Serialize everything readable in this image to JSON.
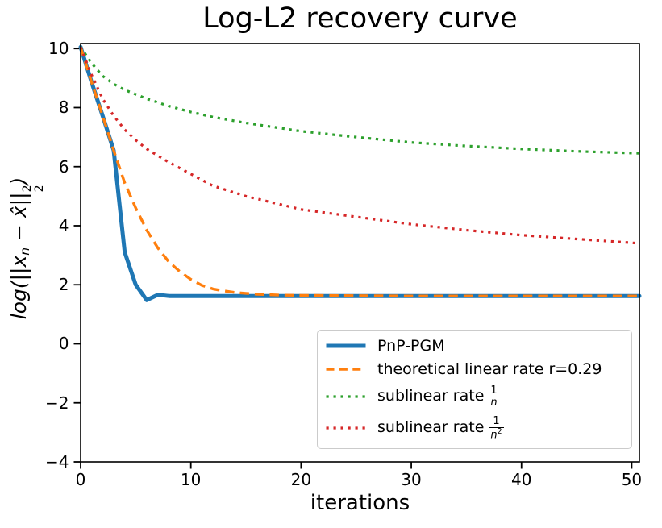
{
  "title": "Log-L2 recovery curve",
  "chart_data": {
    "type": "line",
    "title": "Log-L2 recovery curve",
    "xlabel": "iterations",
    "ylabel": "log(||x_n − x̂||_2^2)",
    "ylabel_rich": {
      "prefix": "log(||x",
      "sub": "n",
      "mid": " − x̂||",
      "stack_top": "2",
      "stack_bottom": "2",
      "suffix": ")"
    },
    "xlim": [
      0,
      50.7
    ],
    "ylim": [
      -4,
      10.17
    ],
    "x_ticks": [
      0,
      10,
      20,
      30,
      40,
      50
    ],
    "x_tick_labels": [
      "0",
      "10",
      "20",
      "30",
      "40",
      "50"
    ],
    "y_ticks": [
      10,
      8,
      6,
      4,
      2,
      0,
      -2,
      -4
    ],
    "y_tick_labels": [
      "10",
      "8",
      "6",
      "4",
      "2",
      "0",
      "−2",
      "−4"
    ],
    "grid": false,
    "legend_position": "lower right",
    "series": [
      {
        "name": "PnP-PGM",
        "color": "#1f77b4",
        "line_style": "solid",
        "line_width": 5,
        "x": [
          0,
          1,
          2,
          3,
          4,
          5,
          6,
          7,
          8,
          10,
          15,
          20,
          25,
          30,
          35,
          40,
          45,
          50
        ],
        "y": [
          10.05,
          8.85,
          7.72,
          6.55,
          3.1,
          2.0,
          1.48,
          1.66,
          1.62,
          1.62,
          1.62,
          1.62,
          1.62,
          1.62,
          1.62,
          1.62,
          1.62,
          1.62
        ]
      },
      {
        "name": "theoretical linear rate r=0.29",
        "color": "#ff7f0e",
        "line_style": "dashed",
        "line_width": 3.4,
        "x": [
          0,
          1,
          2,
          3,
          4,
          5,
          6,
          7,
          8,
          9,
          10,
          11,
          12,
          13,
          14,
          15,
          16,
          18,
          20,
          25,
          30,
          35,
          40,
          45,
          50
        ],
        "y": [
          10.05,
          8.85,
          7.72,
          6.55,
          5.45,
          4.6,
          3.85,
          3.25,
          2.78,
          2.45,
          2.18,
          1.98,
          1.86,
          1.79,
          1.74,
          1.71,
          1.68,
          1.65,
          1.64,
          1.63,
          1.62,
          1.62,
          1.62,
          1.62,
          1.62
        ]
      },
      {
        "name": "sublinear rate 1/n",
        "color": "#2ca02c",
        "line_style": "dotted",
        "line_width": 3.2,
        "x": [
          0,
          1,
          2,
          3,
          4,
          5,
          6,
          8,
          10,
          12,
          15,
          20,
          25,
          30,
          35,
          40,
          45,
          50
        ],
        "y": [
          10.05,
          9.5,
          9.07,
          8.8,
          8.6,
          8.45,
          8.3,
          8.05,
          7.85,
          7.68,
          7.48,
          7.2,
          7.0,
          6.82,
          6.7,
          6.6,
          6.52,
          6.46
        ]
      },
      {
        "name": "sublinear rate 1/n^2",
        "color": "#d62728",
        "line_style": "dotted",
        "line_width": 3.2,
        "x": [
          0,
          1,
          2,
          3,
          4,
          5,
          6,
          8,
          10,
          12,
          15,
          20,
          25,
          30,
          35,
          40,
          45,
          50
        ],
        "y": [
          10.05,
          9.1,
          8.3,
          7.72,
          7.25,
          6.9,
          6.6,
          6.15,
          5.75,
          5.35,
          5.0,
          4.55,
          4.3,
          4.05,
          3.85,
          3.68,
          3.55,
          3.42
        ]
      }
    ],
    "legend": {
      "entries": [
        {
          "series": 0,
          "text": "PnP-PGM",
          "fraction": null
        },
        {
          "series": 1,
          "text": "theoretical linear rate r=0.29",
          "fraction": null
        },
        {
          "series": 2,
          "text": "sublinear rate",
          "fraction": {
            "num": "1",
            "den": "n",
            "den_exp": ""
          }
        },
        {
          "series": 3,
          "text": "sublinear rate",
          "fraction": {
            "num": "1",
            "den": "n",
            "den_exp": "2"
          }
        }
      ]
    }
  },
  "colors": {
    "axis": "#000000",
    "legend_border": "#cbcbcb",
    "background": "#ffffff"
  }
}
